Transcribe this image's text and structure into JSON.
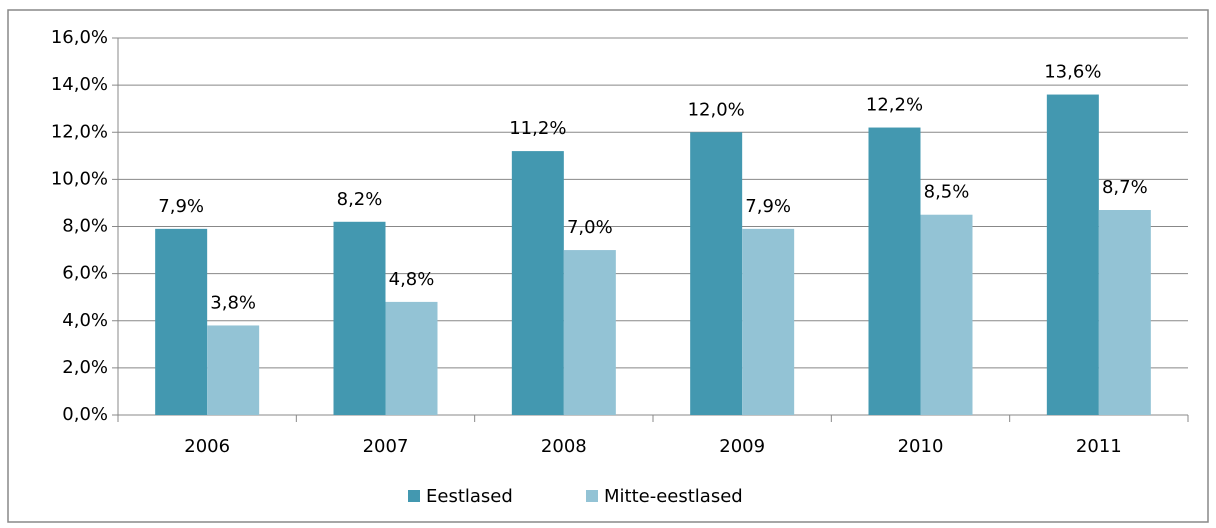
{
  "chart_data": {
    "type": "bar",
    "categories": [
      "2006",
      "2007",
      "2008",
      "2009",
      "2010",
      "2011"
    ],
    "series": [
      {
        "name": "Eestlased",
        "color": "#4398b0",
        "values": [
          7.9,
          8.2,
          11.2,
          12.0,
          12.2,
          13.6
        ],
        "value_labels": [
          "7,9%",
          "8,2%",
          "11,2%",
          "12,0%",
          "12,2%",
          "13,6%"
        ]
      },
      {
        "name": "Mitte-eestlased",
        "color": "#93c3d5",
        "values": [
          3.8,
          4.8,
          7.0,
          7.9,
          8.5,
          8.7
        ],
        "value_labels": [
          "3,8%",
          "4,8%",
          "7,0%",
          "7,9%",
          "8,5%",
          "8,7%"
        ]
      }
    ],
    "ylim": [
      0,
      16
    ],
    "yticks": [
      {
        "value": 0,
        "label": "0,0%"
      },
      {
        "value": 2,
        "label": "2,0%"
      },
      {
        "value": 4,
        "label": "4,0%"
      },
      {
        "value": 6,
        "label": "6,0%"
      },
      {
        "value": 8,
        "label": "8,0%"
      },
      {
        "value": 10,
        "label": "10,0%"
      },
      {
        "value": 12,
        "label": "12,0%"
      },
      {
        "value": 14,
        "label": "14,0%"
      },
      {
        "value": 16,
        "label": "16,0%"
      }
    ],
    "grid": true,
    "legend": "bottom"
  }
}
